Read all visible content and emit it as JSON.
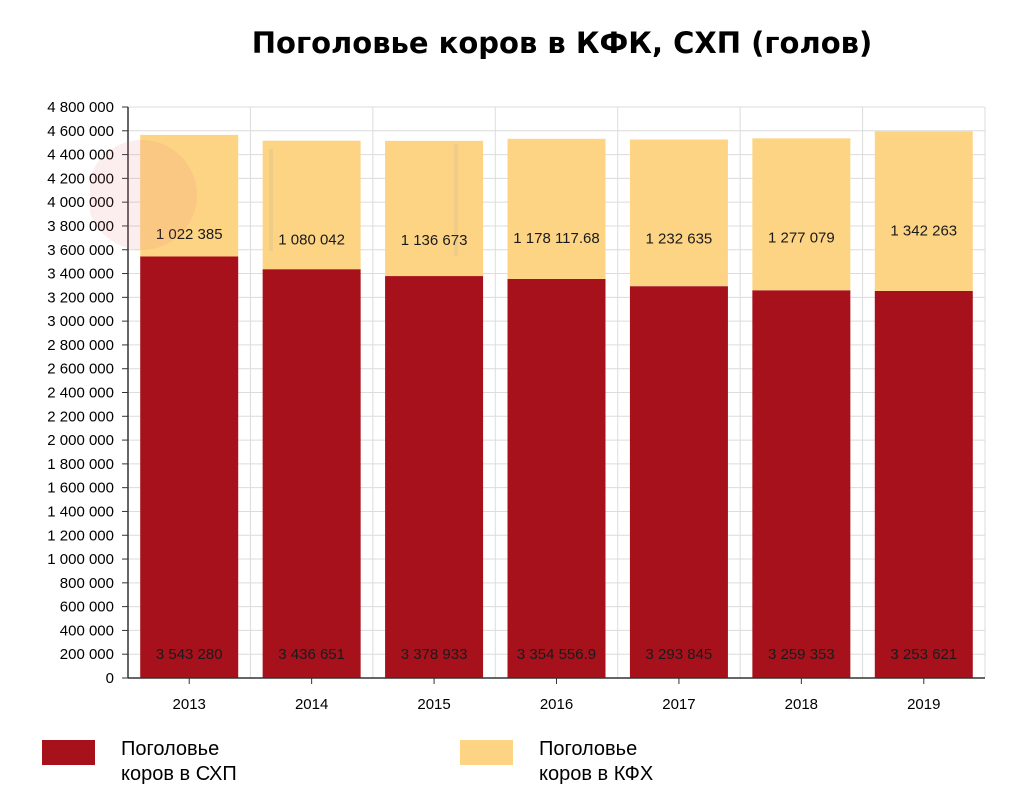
{
  "chart_data": {
    "type": "bar",
    "stacked": true,
    "title": "Поголовье коров в КФК, СХП (голов)",
    "categories": [
      "2013",
      "2014",
      "2015",
      "2016",
      "2017",
      "2018",
      "2019"
    ],
    "series": [
      {
        "name": "Поголовье коров в СХП",
        "color": "#a6111c",
        "values": [
          3543280,
          3436651,
          3378933,
          3354556.9,
          3293845,
          3259353,
          3253621
        ],
        "labels": [
          "3 543 280",
          "3 436 651",
          "3 378 933",
          "3 354 556.9",
          "3 293 845",
          "3 259 353",
          "3 253 621"
        ]
      },
      {
        "name": "Поголовье коров в КФХ",
        "color": "#fdd484",
        "values": [
          1022385,
          1080042,
          1136673,
          1178117.68,
          1232635,
          1277079,
          1342263
        ],
        "labels": [
          "1 022 385",
          "1 080 042",
          "1 136 673",
          "1 178 117.68",
          "1 232 635",
          "1 277 079",
          "1 342 263"
        ]
      }
    ],
    "ylim": [
      0,
      4800000
    ],
    "ytick_step": 200000,
    "ytick_labels": [
      "0",
      "200 000",
      "400 000",
      "600 000",
      "800 000",
      "1 000 000",
      "1 200 000",
      "1 400 000",
      "1 600 000",
      "1 800 000",
      "2 000 000",
      "2 200 000",
      "2 400 000",
      "2 600 000",
      "2 800 000",
      "3 000 000",
      "3 200 000",
      "3 400 000",
      "3 600 000",
      "3 800 000",
      "4 000 000",
      "4 200 000",
      "4 400 000",
      "4 600 000",
      "4 800 000"
    ],
    "grid": true,
    "legend_position": "bottom"
  },
  "legend": [
    {
      "line1": "Поголовье",
      "line2": "коров в СХП",
      "color": "#a6111c"
    },
    {
      "line1": "Поголовье",
      "line2": "коров в КФХ",
      "color": "#fdd484"
    }
  ]
}
